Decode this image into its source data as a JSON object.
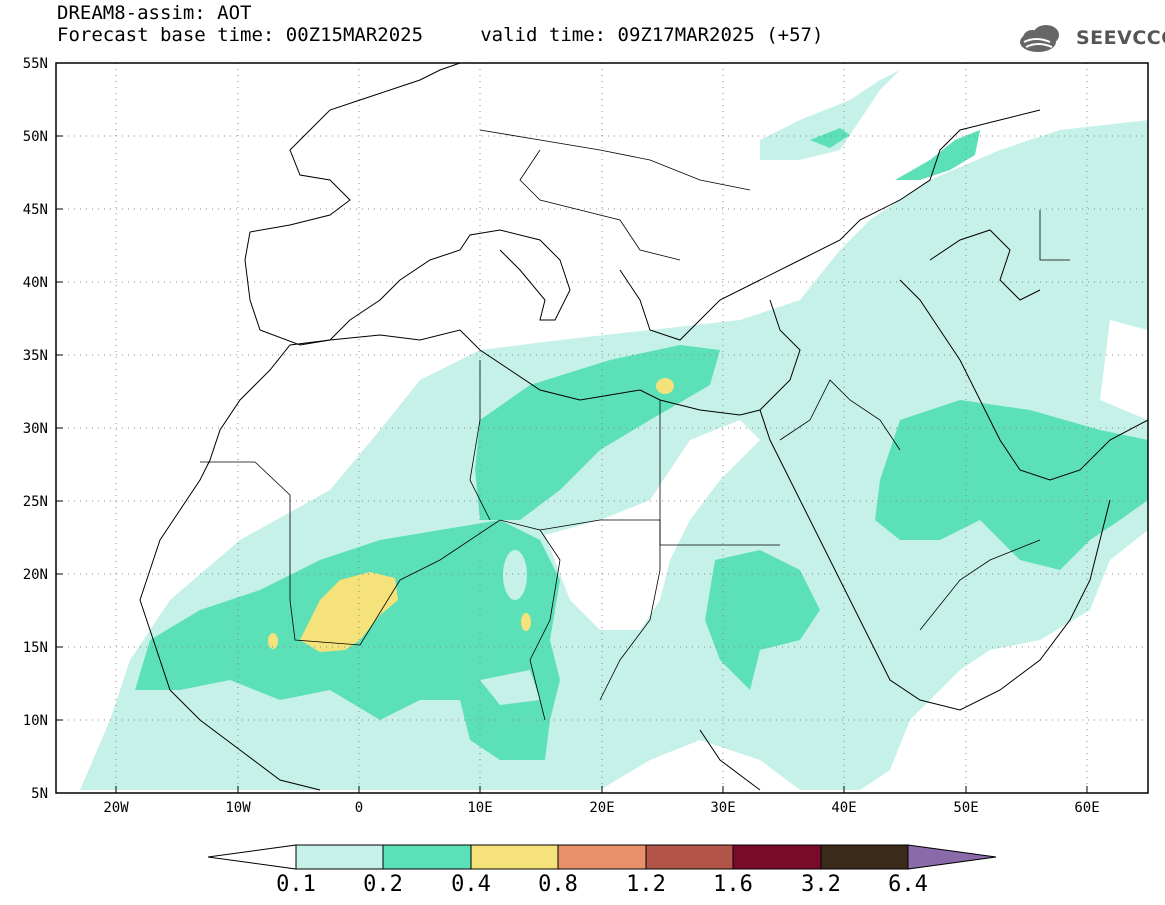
{
  "title": {
    "line1": "DREAM8-assim: AOT",
    "line2": "Forecast base time: 00Z15MAR2025     valid time: 09Z17MAR2025 (+57)"
  },
  "logo": {
    "text": "SEEVCCC",
    "icon": "cloud-icon"
  },
  "map": {
    "lon_range": [
      -25,
      65
    ],
    "lat_range": [
      5,
      55
    ],
    "lat_labels": [
      "55N",
      "50N",
      "45N",
      "40N",
      "35N",
      "30N",
      "25N",
      "20N",
      "15N",
      "10N",
      "5N"
    ],
    "lon_labels": [
      "20W",
      "10W",
      "0",
      "10E",
      "20E",
      "30E",
      "40E",
      "50E",
      "60E"
    ],
    "gridlines": "dotted"
  },
  "colorbar": {
    "labels": [
      "0.1",
      "0.2",
      "0.4",
      "0.8",
      "1.2",
      "1.6",
      "3.2",
      "6.4"
    ],
    "colors": [
      "#ffffff",
      "#c6f1e8",
      "#5ce0b8",
      "#f5e27a",
      "#e8906a",
      "#b25548",
      "#7a0a2a",
      "#3a2a1a",
      "#8a6aa8"
    ]
  }
}
